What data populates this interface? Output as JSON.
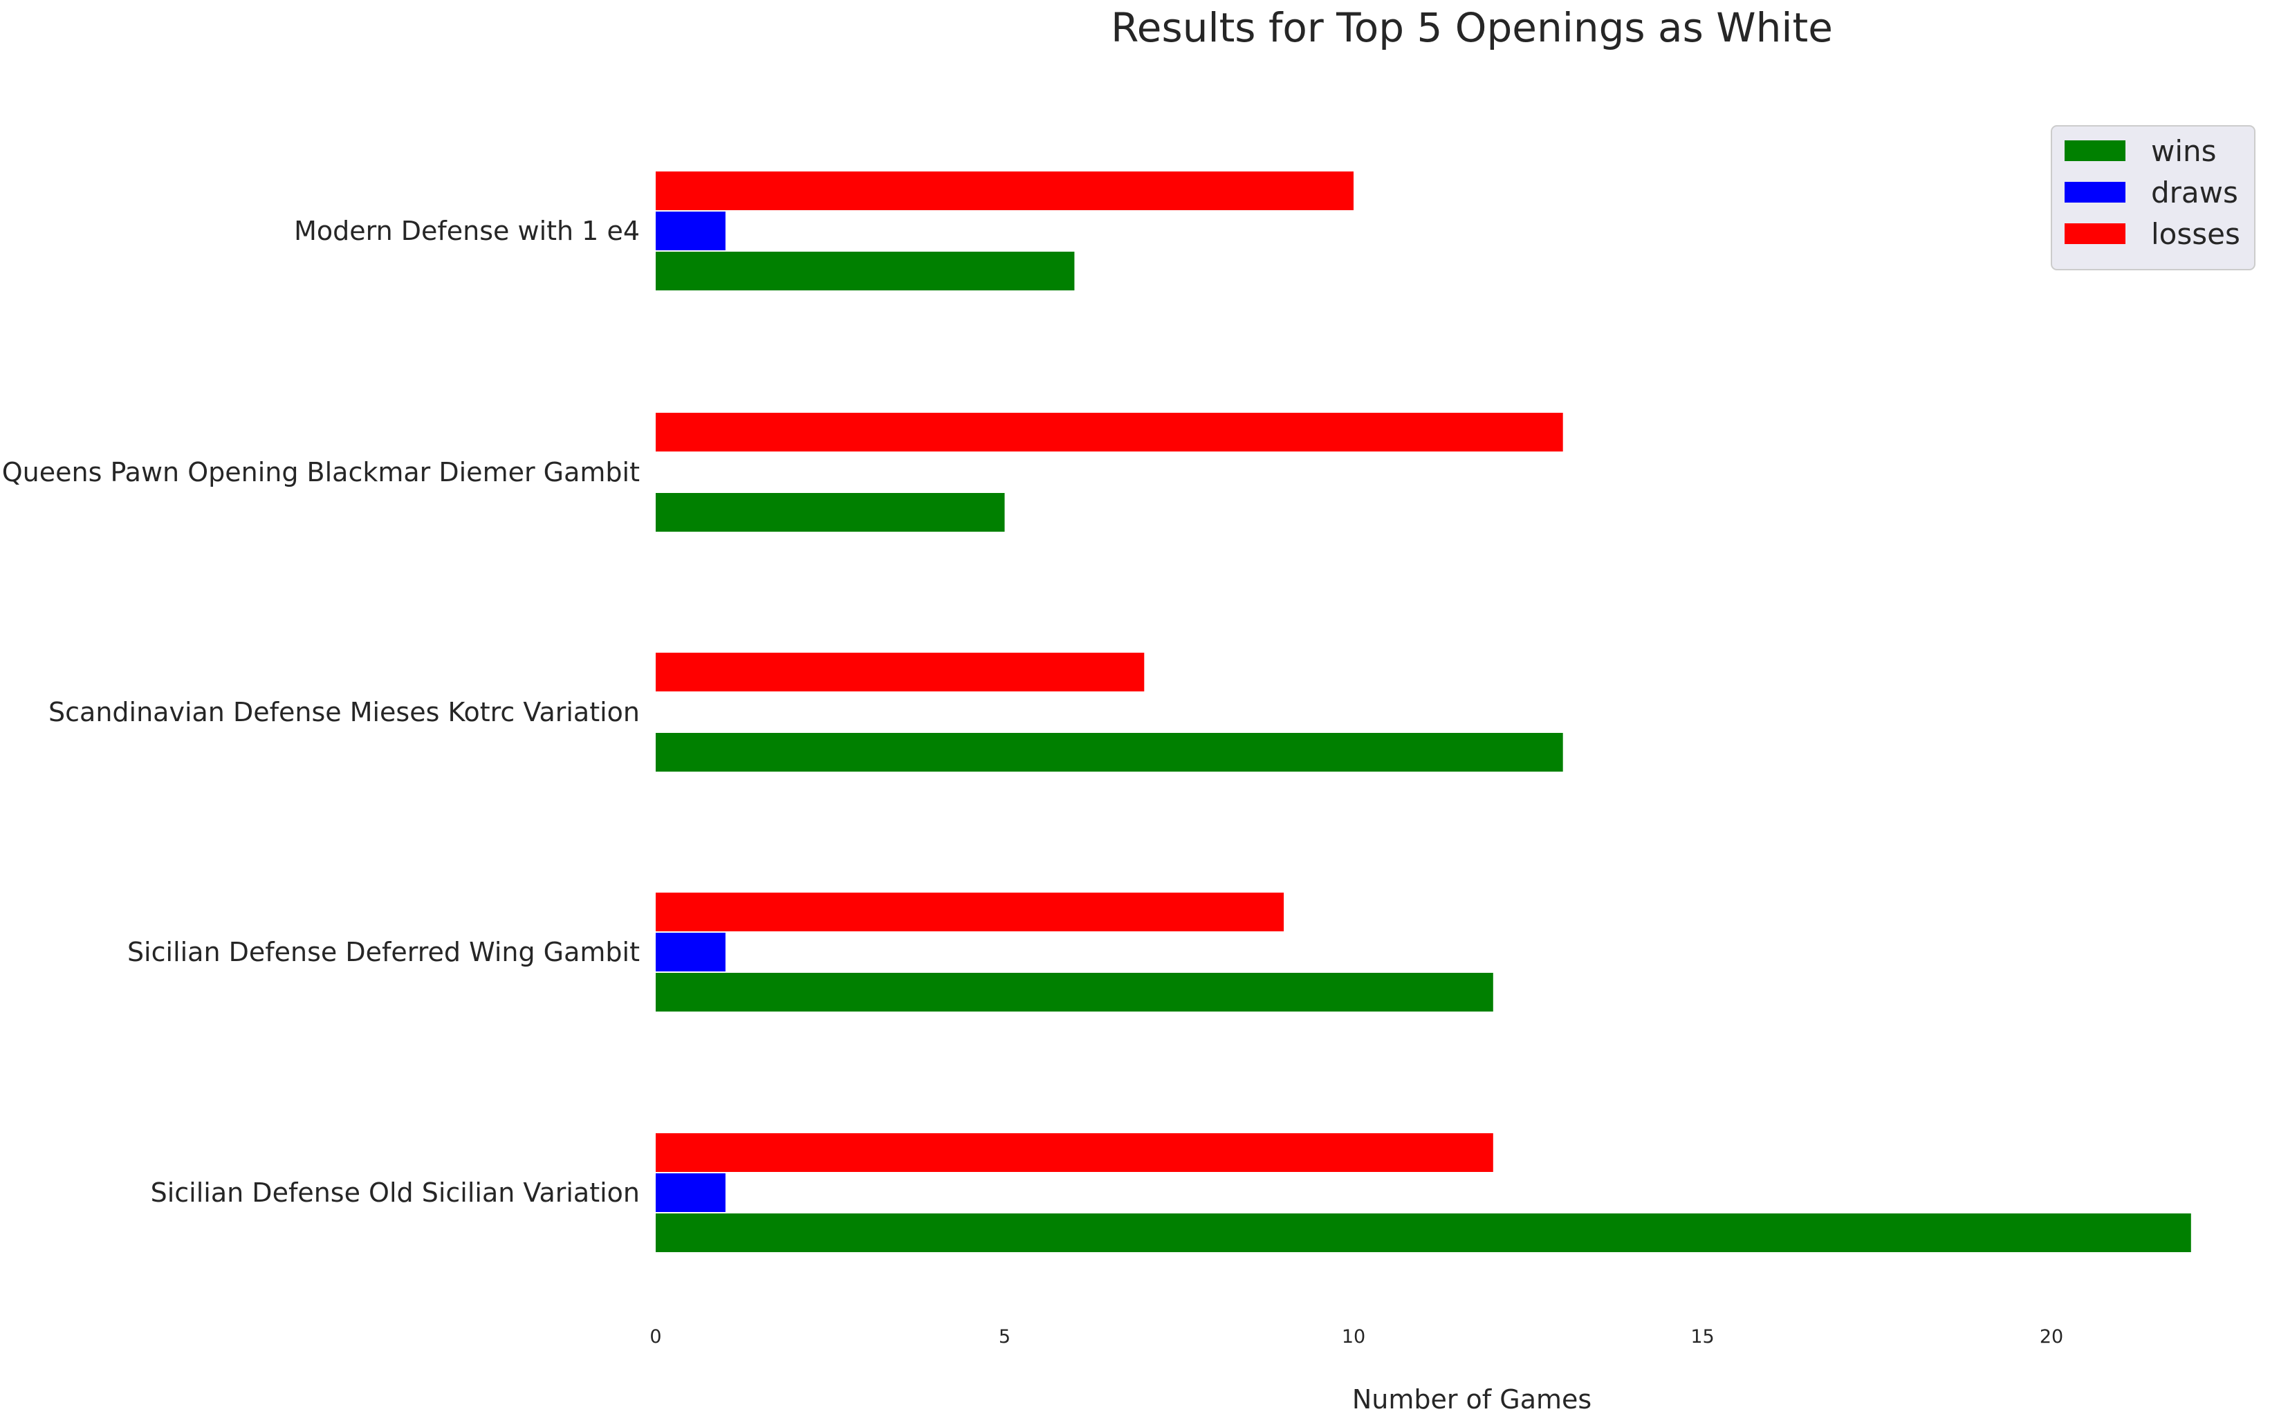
{
  "chart_data": {
    "type": "bar",
    "orientation": "horizontal",
    "title": "Results for Top 5 Openings as White",
    "xlabel": "Number of Games",
    "ylabel": "",
    "xlim": [
      0,
      22.5
    ],
    "xticks": [
      0,
      5,
      10,
      15,
      20
    ],
    "grid": false,
    "legend_position": "top-right",
    "categories": [
      "Sicilian Defense Old Sicilian Variation",
      "Sicilian Defense Deferred Wing Gambit",
      "Scandinavian Defense Mieses Kotrc Variation",
      "Queens Pawn Opening Blackmar Diemer Gambit",
      "Modern Defense with 1 e4"
    ],
    "series": [
      {
        "name": "wins",
        "color": "#008000",
        "values": [
          22,
          12,
          13,
          5,
          6
        ]
      },
      {
        "name": "draws",
        "color": "#0000ff",
        "values": [
          1,
          1,
          0,
          0,
          1
        ]
      },
      {
        "name": "losses",
        "color": "#ff0000",
        "values": [
          12,
          9,
          7,
          13,
          10
        ]
      }
    ]
  }
}
